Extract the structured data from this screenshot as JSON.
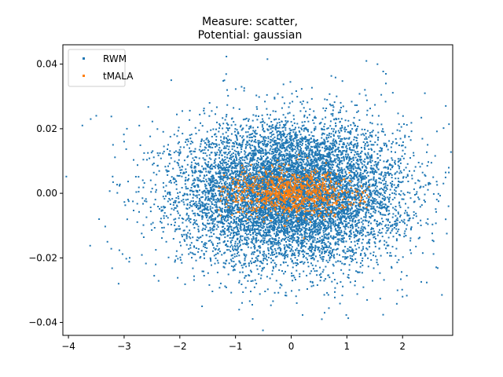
{
  "chart_data": {
    "type": "scatter",
    "title_lines": [
      "Measure: scatter,",
      "Potential: gaussian"
    ],
    "xlabel": "",
    "ylabel": "",
    "xlim": [
      -4.1,
      2.9
    ],
    "ylim": [
      -0.044,
      0.046
    ],
    "x_ticks": [
      -4,
      -3,
      -2,
      -1,
      0,
      1,
      2
    ],
    "y_ticks": [
      -0.04,
      -0.02,
      0.0,
      0.02,
      0.04
    ],
    "x_tick_labels": [
      "−4",
      "−3",
      "−2",
      "−1",
      "0",
      "1",
      "2"
    ],
    "y_tick_labels": [
      "−0.04",
      "−0.02",
      "0.00",
      "0.02",
      "0.04"
    ],
    "grid": false,
    "legend": {
      "position": "top-left"
    },
    "series": [
      {
        "name": "RWM",
        "color": "#1f77b4",
        "distribution": {
          "center_x": 0.0,
          "center_y": 0.0,
          "std_x": 1.0,
          "std_y": 0.011,
          "n_points": 9000
        },
        "x": [
          -3.75,
          -3.6,
          -3.5,
          -3.45,
          -3.3,
          -3.2,
          -3.1,
          -3.0,
          -2.9,
          -1.2,
          -1.15,
          1.35,
          1.55,
          1.7,
          2.0,
          2.4,
          2.45,
          2.55,
          0.55,
          0.1,
          -1.6,
          -2.95,
          0.6,
          1.7
        ],
        "y": [
          0.021,
          0.023,
          0.024,
          -0.008,
          -0.015,
          0.015,
          -0.028,
          0.016,
          -0.02,
          0.035,
          0.032,
          0.041,
          0.04,
          0.034,
          -0.032,
          0.031,
          0.015,
          0.005,
          -0.039,
          -0.034,
          -0.035,
          0.02,
          -0.037,
          0.037
        ]
      },
      {
        "name": "tMALA",
        "color": "#ff7f0e",
        "distribution": {
          "center_x": 0.0,
          "center_y": 0.0,
          "std_x": 0.55,
          "std_y": 0.0035,
          "x_range": [
            -1.3,
            1.4
          ],
          "n_points": 900
        },
        "x": [
          -0.8,
          -0.6,
          -0.3,
          0.0,
          0.2,
          0.5,
          0.6,
          -1.0,
          0.9,
          1.1
        ],
        "y": [
          0.003,
          0.0,
          -0.004,
          0.002,
          -0.002,
          0.001,
          -0.001,
          -0.002,
          0.004,
          0.0
        ]
      }
    ]
  }
}
